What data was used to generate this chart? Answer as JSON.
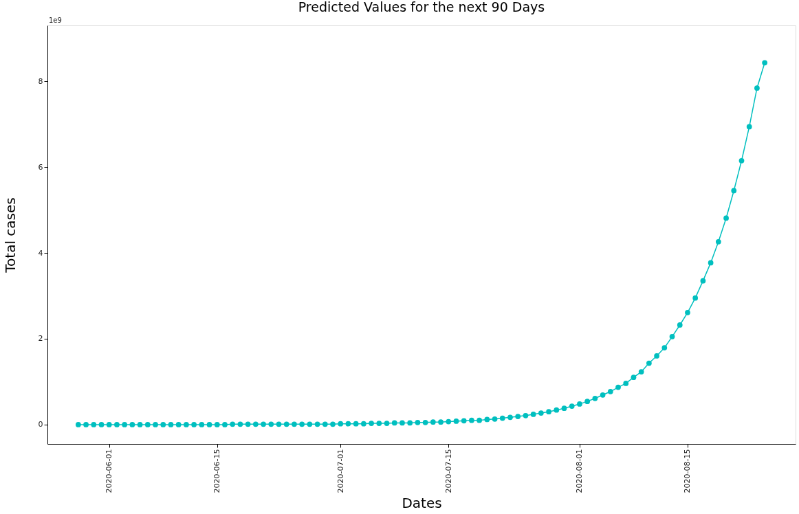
{
  "chart_data": {
    "type": "line",
    "title": "Predicted Values for the next 90 Days",
    "xlabel": "Dates",
    "ylabel": "Total cases",
    "annotations": [
      "1e9"
    ],
    "x": [
      "2020-05-28",
      "2020-05-29",
      "2020-05-30",
      "2020-05-31",
      "2020-06-01",
      "2020-06-02",
      "2020-06-03",
      "2020-06-04",
      "2020-06-05",
      "2020-06-06",
      "2020-06-07",
      "2020-06-08",
      "2020-06-09",
      "2020-06-10",
      "2020-06-11",
      "2020-06-12",
      "2020-06-13",
      "2020-06-14",
      "2020-06-15",
      "2020-06-16",
      "2020-06-17",
      "2020-06-18",
      "2020-06-19",
      "2020-06-20",
      "2020-06-21",
      "2020-06-22",
      "2020-06-23",
      "2020-06-24",
      "2020-06-25",
      "2020-06-26",
      "2020-06-27",
      "2020-06-28",
      "2020-06-29",
      "2020-06-30",
      "2020-07-01",
      "2020-07-02",
      "2020-07-03",
      "2020-07-04",
      "2020-07-05",
      "2020-07-06",
      "2020-07-07",
      "2020-07-08",
      "2020-07-09",
      "2020-07-10",
      "2020-07-11",
      "2020-07-12",
      "2020-07-13",
      "2020-07-14",
      "2020-07-15",
      "2020-07-16",
      "2020-07-17",
      "2020-07-18",
      "2020-07-19",
      "2020-07-20",
      "2020-07-21",
      "2020-07-22",
      "2020-07-23",
      "2020-07-24",
      "2020-07-25",
      "2020-07-26",
      "2020-07-27",
      "2020-07-28",
      "2020-07-29",
      "2020-07-30",
      "2020-07-31",
      "2020-08-01",
      "2020-08-02",
      "2020-08-03",
      "2020-08-04",
      "2020-08-05",
      "2020-08-06",
      "2020-08-07",
      "2020-08-08",
      "2020-08-09",
      "2020-08-10",
      "2020-08-11",
      "2020-08-12",
      "2020-08-13",
      "2020-08-14",
      "2020-08-15",
      "2020-08-16",
      "2020-08-17",
      "2020-08-18",
      "2020-08-19",
      "2020-08-20",
      "2020-08-21",
      "2020-08-22",
      "2020-08-23",
      "2020-08-24",
      "2020-08-25"
    ],
    "series": [
      {
        "color": "#00bfbf",
        "values": [
          0,
          0,
          0,
          0,
          0,
          0,
          0,
          0,
          0,
          0,
          0,
          0,
          0,
          0,
          0,
          0,
          0,
          0,
          0,
          0,
          0.01,
          0.01,
          0.01,
          0.01,
          0.01,
          0.01,
          0.01,
          0.01,
          0.01,
          0.01,
          0.01,
          0.01,
          0.01,
          0.01,
          0.02,
          0.02,
          0.02,
          0.02,
          0.03,
          0.03,
          0.03,
          0.04,
          0.04,
          0.04,
          0.05,
          0.05,
          0.06,
          0.06,
          0.07,
          0.08,
          0.09,
          0.1,
          0.1,
          0.12,
          0.13,
          0.15,
          0.17,
          0.19,
          0.21,
          0.24,
          0.27,
          0.3,
          0.34,
          0.38,
          0.43,
          0.48,
          0.54,
          0.61,
          0.69,
          0.77,
          0.87,
          0.96,
          1.1,
          1.23,
          1.43,
          1.6,
          1.79,
          2.05,
          2.32,
          2.61,
          2.95,
          3.35,
          3.77,
          4.26,
          4.81,
          5.45,
          6.15,
          6.94,
          7.84,
          8.43
        ]
      }
    ],
    "xlim": [
      "2020-05-24",
      "2020-08-29"
    ],
    "xticks": [
      "2020-06-01",
      "2020-06-15",
      "2020-07-01",
      "2020-07-15",
      "2020-08-01",
      "2020-08-15"
    ],
    "ylim": [
      -0.45,
      9.3
    ],
    "yticks": [
      0,
      2,
      4,
      6,
      8
    ],
    "grid": false,
    "marker": "circle",
    "line_style": "solid"
  }
}
